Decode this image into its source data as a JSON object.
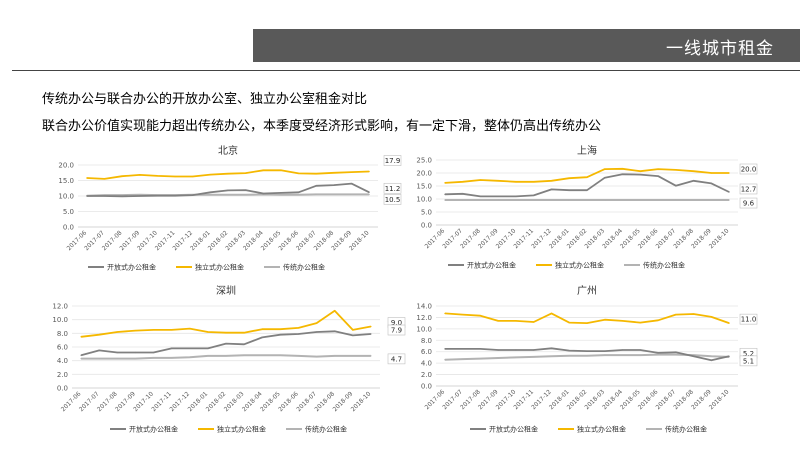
{
  "header": {
    "title": "一线城市租金"
  },
  "headings": {
    "line1": "传统办公与联合办公的开放办公室、独立办公室租金对比",
    "line2": "联合办公价值实现能力超出传统办公，本季度受经济形式影响，有一定下滑，整体仍高出传统办公"
  },
  "colors": {
    "open": "#808080",
    "private": "#f5b800",
    "traditional": "#b3b3b3",
    "grid": "#e5e5e5",
    "axis_text": "#595959"
  },
  "chart_data": [
    {
      "type": "line",
      "title": "北京",
      "categories": [
        "2017-06",
        "2017-07",
        "2017-08",
        "2017-09",
        "2017-10",
        "2017-11",
        "2017-12",
        "2018-01",
        "2018-02",
        "2018-03",
        "2018-04",
        "2018-05",
        "2018-06",
        "2018-07",
        "2018-08",
        "2018-09",
        "2018-10"
      ],
      "ylim": [
        0,
        20
      ],
      "yticks": [
        "0.0",
        "5.0",
        "10.0",
        "15.0",
        "20.0"
      ],
      "series": [
        {
          "key": "open",
          "name": "开放式办公租金",
          "values": [
            10.0,
            10.0,
            9.9,
            10.0,
            10.1,
            10.1,
            10.3,
            11.2,
            11.8,
            11.9,
            10.8,
            11.0,
            11.2,
            13.3,
            13.5,
            14.0,
            11.2
          ]
        },
        {
          "key": "private",
          "name": "独立式办公租金",
          "values": [
            15.8,
            15.5,
            16.4,
            16.8,
            16.5,
            16.3,
            16.3,
            16.9,
            17.2,
            17.4,
            18.3,
            18.3,
            17.3,
            17.2,
            17.5,
            17.7,
            17.9
          ]
        },
        {
          "key": "traditional",
          "name": "传统办公租金",
          "values": [
            10.1,
            10.3,
            10.3,
            10.4,
            10.3,
            10.3,
            10.4,
            10.4,
            10.4,
            10.4,
            10.5,
            10.4,
            10.4,
            10.5,
            10.5,
            10.5,
            10.5
          ]
        }
      ],
      "end_labels": [
        "17.9",
        "11.2",
        "10.5"
      ],
      "legend": [
        "开放式办公租金",
        "独立式办公租金",
        "传统办公租金"
      ]
    },
    {
      "type": "line",
      "title": "上海",
      "categories": [
        "2017-06",
        "2017-07",
        "2017-08",
        "2017-09",
        "2017-10",
        "2017-11",
        "2017-12",
        "2018-01",
        "2018-02",
        "2018-03",
        "2018-04",
        "2018-05",
        "2018-06",
        "2018-07",
        "2018-08",
        "2018-09",
        "2018-10"
      ],
      "ylim": [
        0,
        25
      ],
      "yticks": [
        "0.0",
        "5.0",
        "10.0",
        "15.0",
        "20.0",
        "25.0"
      ],
      "series": [
        {
          "key": "open",
          "name": "开放式办公租金",
          "values": [
            11.8,
            12.0,
            11.0,
            11.0,
            11.0,
            11.4,
            13.7,
            13.4,
            13.4,
            18.2,
            19.5,
            19.4,
            18.8,
            15.1,
            17.0,
            16.0,
            12.7
          ]
        },
        {
          "key": "private",
          "name": "独立式办公租金",
          "values": [
            16.2,
            16.6,
            17.3,
            17.0,
            16.6,
            16.6,
            17.0,
            18.0,
            18.4,
            21.5,
            21.6,
            20.7,
            21.5,
            21.2,
            20.7,
            20.0,
            20.0
          ]
        },
        {
          "key": "traditional",
          "name": "传统办公租金",
          "values": [
            9.6,
            9.6,
            9.6,
            9.6,
            9.6,
            9.6,
            9.6,
            9.6,
            9.6,
            9.6,
            9.6,
            9.6,
            9.6,
            9.6,
            9.6,
            9.6,
            9.6
          ]
        }
      ],
      "end_labels": [
        "20.0",
        "12.7",
        "9.6"
      ],
      "legend": [
        "开放式办公租金",
        "独立式办公租金",
        "传统办公租金"
      ]
    },
    {
      "type": "line",
      "title": "深圳",
      "categories": [
        "2017-06",
        "2017-07",
        "2017-08",
        "2017-09",
        "2017-10",
        "2017-11",
        "2017-12",
        "2018-01",
        "2018-02",
        "2018-03",
        "2018-04",
        "2018-05",
        "2018-06",
        "2018-07",
        "2018-08",
        "2018-09",
        "2018-10"
      ],
      "ylim": [
        0,
        12
      ],
      "yticks": [
        "0.0",
        "2.0",
        "4.0",
        "6.0",
        "8.0",
        "10.0",
        "12.0"
      ],
      "series": [
        {
          "key": "open",
          "name": "开放式办公租金",
          "values": [
            4.8,
            5.5,
            5.2,
            5.2,
            5.2,
            5.8,
            5.8,
            5.8,
            6.5,
            6.4,
            7.4,
            7.8,
            7.9,
            8.2,
            8.3,
            7.7,
            7.9
          ]
        },
        {
          "key": "private",
          "name": "独立式办公租金",
          "values": [
            7.5,
            7.8,
            8.2,
            8.4,
            8.5,
            8.5,
            8.7,
            8.2,
            8.1,
            8.1,
            8.6,
            8.6,
            8.8,
            9.5,
            11.3,
            8.5,
            9.0
          ]
        },
        {
          "key": "traditional",
          "name": "传统办公租金",
          "values": [
            4.3,
            4.3,
            4.3,
            4.3,
            4.4,
            4.4,
            4.5,
            4.7,
            4.7,
            4.8,
            4.8,
            4.8,
            4.7,
            4.6,
            4.7,
            4.7,
            4.7
          ]
        }
      ],
      "end_labels": [
        "9.0",
        "7.9",
        "4.7"
      ],
      "legend": [
        "开放式办公租金",
        "独立式办公租金",
        "传统办公租金"
      ]
    },
    {
      "type": "line",
      "title": "广州",
      "categories": [
        "2017-06",
        "2017-07",
        "2017-08",
        "2017-09",
        "2017-10",
        "2017-11",
        "2017-12",
        "2018-01",
        "2018-02",
        "2018-03",
        "2018-04",
        "2018-05",
        "2018-06",
        "2018-07",
        "2018-08",
        "2018-09",
        "2018-10"
      ],
      "ylim": [
        0,
        14
      ],
      "yticks": [
        "0.0",
        "2.0",
        "4.0",
        "6.0",
        "8.0",
        "10.0",
        "12.0",
        "14.0"
      ],
      "series": [
        {
          "key": "open",
          "name": "开放式办公租金",
          "values": [
            6.5,
            6.5,
            6.5,
            6.3,
            6.3,
            6.3,
            6.6,
            6.2,
            6.1,
            6.1,
            6.3,
            6.3,
            5.8,
            5.9,
            5.2,
            4.5,
            5.2
          ]
        },
        {
          "key": "private",
          "name": "独立式办公租金",
          "values": [
            12.7,
            12.5,
            12.3,
            11.4,
            11.4,
            11.2,
            12.7,
            11.1,
            11.0,
            11.6,
            11.4,
            11.1,
            11.5,
            12.5,
            12.6,
            12.1,
            11.0
          ]
        },
        {
          "key": "traditional",
          "name": "传统办公租金",
          "values": [
            4.6,
            4.7,
            4.8,
            4.9,
            5.0,
            5.1,
            5.2,
            5.3,
            5.3,
            5.4,
            5.4,
            5.4,
            5.5,
            5.5,
            5.4,
            5.2,
            5.1
          ]
        }
      ],
      "end_labels": [
        "11.0",
        "5.2",
        "5.1"
      ],
      "legend": [
        "开放式办公租金",
        "独立式办公租金",
        "传统办公租金"
      ]
    }
  ]
}
